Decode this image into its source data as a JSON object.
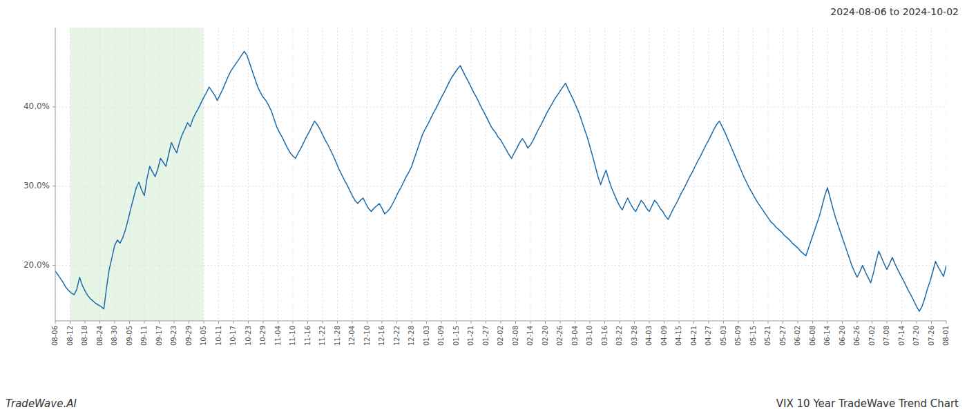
{
  "chart_data": {
    "type": "line",
    "title": "VIX 10 Year TradeWave Trend Chart",
    "subtitle": "2024-08-06 to 2024-10-02",
    "annotations": [
      "TradeWave.AI"
    ],
    "color": "#1a6aab",
    "grid": true,
    "xlim": [
      0,
      330
    ],
    "xticks": [
      {
        "value": 0,
        "label": "08-06"
      },
      {
        "value": 5.5,
        "label": "08-12"
      },
      {
        "value": 11,
        "label": "08-18"
      },
      {
        "value": 16.5,
        "label": "08-24"
      },
      {
        "value": 22,
        "label": "08-30"
      },
      {
        "value": 27.5,
        "label": "09-05"
      },
      {
        "value": 33,
        "label": "09-11"
      },
      {
        "value": 38.5,
        "label": "09-17"
      },
      {
        "value": 44,
        "label": "09-23"
      },
      {
        "value": 49.5,
        "label": "09-29"
      },
      {
        "value": 55,
        "label": "10-05"
      },
      {
        "value": 60.5,
        "label": "10-11"
      },
      {
        "value": 66,
        "label": "10-17"
      },
      {
        "value": 71.5,
        "label": "10-23"
      },
      {
        "value": 77,
        "label": "10-29"
      },
      {
        "value": 82.5,
        "label": "11-04"
      },
      {
        "value": 88,
        "label": "11-10"
      },
      {
        "value": 93.5,
        "label": "11-16"
      },
      {
        "value": 99,
        "label": "11-22"
      },
      {
        "value": 104.5,
        "label": "11-28"
      },
      {
        "value": 110,
        "label": "12-04"
      },
      {
        "value": 115.5,
        "label": "12-10"
      },
      {
        "value": 121,
        "label": "12-16"
      },
      {
        "value": 126.5,
        "label": "12-22"
      },
      {
        "value": 132,
        "label": "12-28"
      },
      {
        "value": 137.5,
        "label": "01-03"
      },
      {
        "value": 143,
        "label": "01-09"
      },
      {
        "value": 148.5,
        "label": "01-15"
      },
      {
        "value": 154,
        "label": "01-21"
      },
      {
        "value": 159.5,
        "label": "01-27"
      },
      {
        "value": 165,
        "label": "02-02"
      },
      {
        "value": 170.5,
        "label": "02-08"
      },
      {
        "value": 176,
        "label": "02-14"
      },
      {
        "value": 181.5,
        "label": "02-20"
      },
      {
        "value": 187,
        "label": "02-26"
      },
      {
        "value": 192.5,
        "label": "03-04"
      },
      {
        "value": 198,
        "label": "03-10"
      },
      {
        "value": 203.5,
        "label": "03-16"
      },
      {
        "value": 209,
        "label": "03-22"
      },
      {
        "value": 214.5,
        "label": "03-28"
      },
      {
        "value": 220,
        "label": "04-03"
      },
      {
        "value": 225.5,
        "label": "04-09"
      },
      {
        "value": 231,
        "label": "04-15"
      },
      {
        "value": 236.5,
        "label": "04-21"
      },
      {
        "value": 242,
        "label": "04-27"
      },
      {
        "value": 247.5,
        "label": "05-03"
      },
      {
        "value": 253,
        "label": "05-09"
      },
      {
        "value": 258.5,
        "label": "05-15"
      },
      {
        "value": 264,
        "label": "05-21"
      },
      {
        "value": 269.5,
        "label": "05-27"
      },
      {
        "value": 275,
        "label": "06-02"
      },
      {
        "value": 280.5,
        "label": "06-08"
      },
      {
        "value": 286,
        "label": "06-14"
      },
      {
        "value": 291.5,
        "label": "06-20"
      },
      {
        "value": 297,
        "label": "06-26"
      },
      {
        "value": 302.5,
        "label": "07-02"
      },
      {
        "value": 308,
        "label": "07-08"
      },
      {
        "value": 313.5,
        "label": "07-14"
      },
      {
        "value": 319,
        "label": "07-20"
      },
      {
        "value": 324.5,
        "label": "07-26"
      },
      {
        "value": 330,
        "label": "08-01"
      }
    ],
    "ylim": [
      0.13,
      0.5
    ],
    "yticks": [
      {
        "value": 0.2,
        "label": "20.0%"
      },
      {
        "value": 0.3,
        "label": "30.0%"
      },
      {
        "value": 0.4,
        "label": "40.0%"
      }
    ],
    "shade": {
      "xlim": [
        5.5,
        55
      ],
      "color": "#d4ecd4"
    },
    "values": [
      0.193,
      0.188,
      0.183,
      0.178,
      0.172,
      0.168,
      0.165,
      0.163,
      0.17,
      0.185,
      0.175,
      0.168,
      0.162,
      0.158,
      0.155,
      0.152,
      0.15,
      0.148,
      0.145,
      0.172,
      0.195,
      0.21,
      0.225,
      0.232,
      0.228,
      0.235,
      0.245,
      0.258,
      0.272,
      0.285,
      0.298,
      0.305,
      0.295,
      0.288,
      0.31,
      0.325,
      0.318,
      0.312,
      0.322,
      0.335,
      0.33,
      0.325,
      0.34,
      0.355,
      0.348,
      0.342,
      0.355,
      0.365,
      0.372,
      0.38,
      0.375,
      0.385,
      0.392,
      0.398,
      0.405,
      0.412,
      0.418,
      0.425,
      0.42,
      0.415,
      0.408,
      0.415,
      0.422,
      0.43,
      0.438,
      0.445,
      0.45,
      0.455,
      0.46,
      0.465,
      0.47,
      0.465,
      0.455,
      0.445,
      0.435,
      0.425,
      0.418,
      0.412,
      0.408,
      0.402,
      0.395,
      0.385,
      0.375,
      0.368,
      0.362,
      0.355,
      0.348,
      0.342,
      0.338,
      0.335,
      0.342,
      0.348,
      0.355,
      0.362,
      0.368,
      0.375,
      0.382,
      0.378,
      0.372,
      0.365,
      0.358,
      0.352,
      0.345,
      0.338,
      0.33,
      0.322,
      0.315,
      0.308,
      0.302,
      0.295,
      0.288,
      0.282,
      0.278,
      0.282,
      0.285,
      0.278,
      0.272,
      0.268,
      0.272,
      0.275,
      0.278,
      0.272,
      0.265,
      0.268,
      0.272,
      0.278,
      0.285,
      0.292,
      0.298,
      0.305,
      0.312,
      0.318,
      0.325,
      0.335,
      0.345,
      0.355,
      0.365,
      0.372,
      0.378,
      0.385,
      0.392,
      0.398,
      0.405,
      0.412,
      0.418,
      0.425,
      0.432,
      0.438,
      0.443,
      0.448,
      0.452,
      0.445,
      0.438,
      0.432,
      0.425,
      0.418,
      0.412,
      0.405,
      0.398,
      0.392,
      0.385,
      0.378,
      0.372,
      0.368,
      0.362,
      0.358,
      0.352,
      0.346,
      0.34,
      0.335,
      0.342,
      0.348,
      0.355,
      0.36,
      0.355,
      0.348,
      0.352,
      0.358,
      0.365,
      0.372,
      0.378,
      0.385,
      0.392,
      0.398,
      0.404,
      0.41,
      0.415,
      0.42,
      0.425,
      0.43,
      0.422,
      0.415,
      0.408,
      0.4,
      0.392,
      0.382,
      0.372,
      0.362,
      0.35,
      0.338,
      0.325,
      0.312,
      0.302,
      0.312,
      0.32,
      0.308,
      0.298,
      0.29,
      0.282,
      0.275,
      0.27,
      0.278,
      0.285,
      0.278,
      0.272,
      0.268,
      0.275,
      0.282,
      0.278,
      0.272,
      0.268,
      0.275,
      0.282,
      0.278,
      0.272,
      0.268,
      0.262,
      0.258,
      0.265,
      0.272,
      0.278,
      0.285,
      0.292,
      0.298,
      0.305,
      0.312,
      0.318,
      0.325,
      0.332,
      0.338,
      0.345,
      0.352,
      0.358,
      0.365,
      0.372,
      0.378,
      0.382,
      0.375,
      0.368,
      0.36,
      0.352,
      0.344,
      0.336,
      0.328,
      0.32,
      0.312,
      0.305,
      0.298,
      0.292,
      0.286,
      0.28,
      0.275,
      0.27,
      0.265,
      0.26,
      0.255,
      0.252,
      0.248,
      0.245,
      0.242,
      0.238,
      0.235,
      0.232,
      0.228,
      0.225,
      0.222,
      0.218,
      0.215,
      0.212,
      0.222,
      0.232,
      0.242,
      0.252,
      0.262,
      0.275,
      0.288,
      0.298,
      0.285,
      0.272,
      0.26,
      0.25,
      0.24,
      0.23,
      0.22,
      0.21,
      0.2,
      0.192,
      0.185,
      0.192,
      0.2,
      0.192,
      0.185,
      0.178,
      0.19,
      0.205,
      0.218,
      0.21,
      0.202,
      0.195,
      0.202,
      0.21,
      0.202,
      0.195,
      0.188,
      0.182,
      0.175,
      0.168,
      0.162,
      0.155,
      0.148,
      0.142,
      0.148,
      0.158,
      0.17,
      0.18,
      0.192,
      0.205,
      0.198,
      0.192,
      0.186,
      0.2
    ]
  }
}
